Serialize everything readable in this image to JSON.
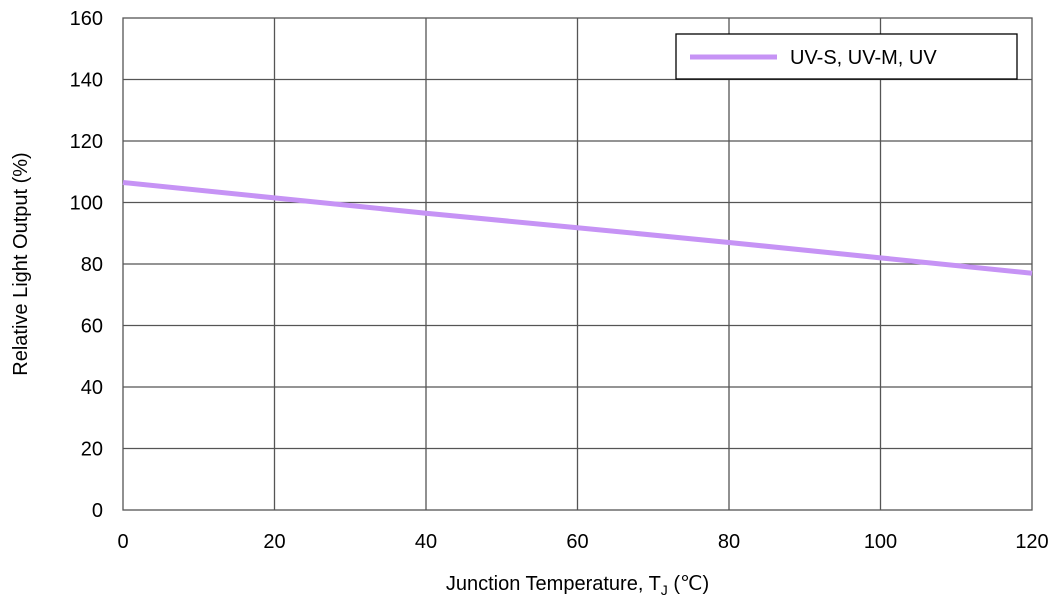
{
  "chart_data": {
    "type": "line",
    "xlabel_prefix": "Junction Temperature, T",
    "xlabel_subscript": "J",
    "xlabel_suffix": " (℃)",
    "ylabel": "Relative Light Output (%)",
    "xlim": [
      0,
      120
    ],
    "ylim": [
      0,
      160
    ],
    "x_ticks": [
      0,
      20,
      40,
      60,
      80,
      100,
      120
    ],
    "y_ticks": [
      0,
      20,
      40,
      60,
      80,
      100,
      120,
      140,
      160
    ],
    "grid": true,
    "legend_position": "top-right",
    "series": [
      {
        "name": "UV-S, UV-M, UV",
        "color": "#c693f5",
        "x": [
          0,
          20,
          40,
          60,
          80,
          100,
          120
        ],
        "y": [
          106.5,
          101.5,
          96.5,
          91.8,
          87,
          82,
          77
        ]
      }
    ]
  }
}
